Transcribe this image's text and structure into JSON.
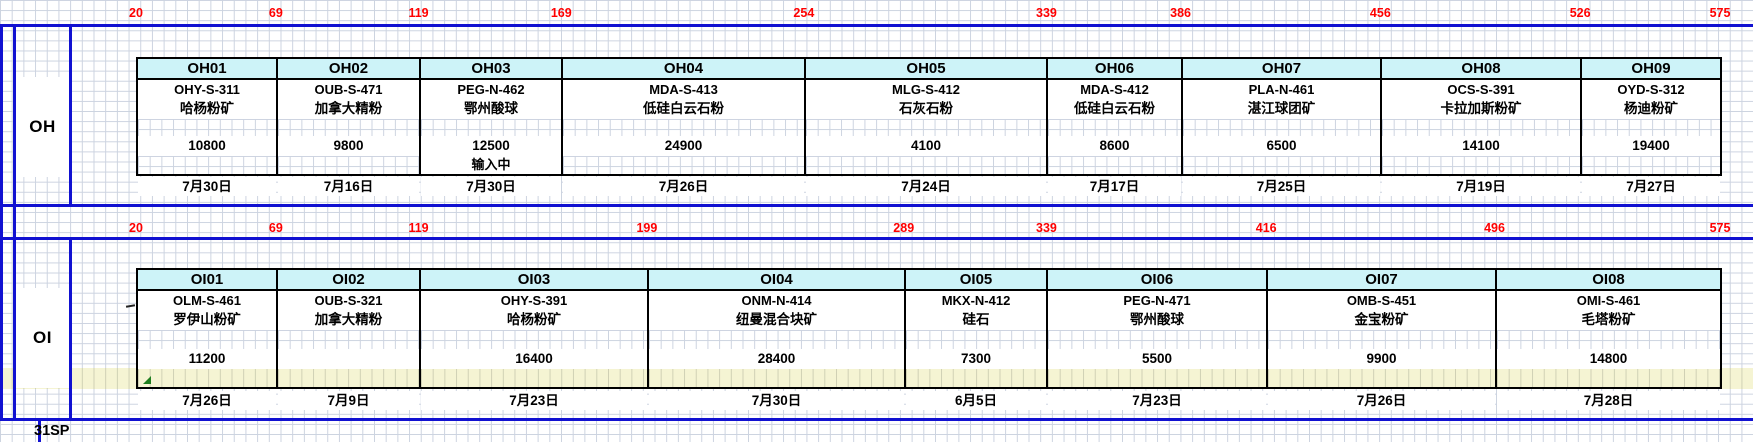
{
  "rulers": {
    "oh": [
      20,
      69,
      119,
      169,
      254,
      339,
      386,
      456,
      526,
      575
    ],
    "oi": [
      20,
      69,
      119,
      199,
      289,
      339,
      416,
      496,
      575
    ]
  },
  "sections": [
    {
      "id": "OH",
      "label": "OH",
      "bins": [
        {
          "id": "OH01",
          "start": 20,
          "end": 69,
          "code": "OHY-S-311",
          "material": "哈杨粉矿",
          "quantity": "10800",
          "note": "",
          "date": "7月30日"
        },
        {
          "id": "OH02",
          "start": 69,
          "end": 119,
          "code": "OUB-S-471",
          "material": "加拿大精粉",
          "quantity": "9800",
          "note": "",
          "date": "7月16日"
        },
        {
          "id": "OH03",
          "start": 119,
          "end": 169,
          "code": "PEG-N-462",
          "material": "鄂州酸球",
          "quantity": "12500",
          "note": "输入中",
          "date": "7月30日"
        },
        {
          "id": "OH04",
          "start": 169,
          "end": 254,
          "code": "MDA-S-413",
          "material": "低硅白云石粉",
          "quantity": "24900",
          "note": "",
          "date": "7月26日"
        },
        {
          "id": "OH05",
          "start": 254,
          "end": 339,
          "code": "MLG-S-412",
          "material": "石灰石粉",
          "quantity": "4100",
          "note": "",
          "date": "7月24日"
        },
        {
          "id": "OH06",
          "start": 339,
          "end": 386,
          "code": "MDA-S-412",
          "material": "低硅白云石粉",
          "quantity": "8600",
          "note": "",
          "date": "7月17日"
        },
        {
          "id": "OH07",
          "start": 386,
          "end": 456,
          "code": "PLA-N-461",
          "material": "湛江球团矿",
          "quantity": "6500",
          "note": "",
          "date": "7月25日"
        },
        {
          "id": "OH08",
          "start": 456,
          "end": 526,
          "code": "OCS-S-391",
          "material": "卡拉加斯粉矿",
          "quantity": "14100",
          "note": "",
          "date": "7月19日"
        },
        {
          "id": "OH09",
          "start": 526,
          "end": 575,
          "code": "OYD-S-312",
          "material": "杨迪粉矿",
          "quantity": "19400",
          "note": "",
          "date": "7月27日"
        }
      ]
    },
    {
      "id": "OI",
      "label": "OI",
      "bins": [
        {
          "id": "OI01",
          "start": 20,
          "end": 69,
          "code": "OLM-S-461",
          "material": "罗伊山粉矿",
          "quantity": "11200",
          "flag": "error-indicator",
          "date": "7月26日"
        },
        {
          "id": "OI02",
          "start": 69,
          "end": 119,
          "code": "OUB-S-321",
          "material": "加拿大精粉",
          "quantity": "",
          "date": "7月9日"
        },
        {
          "id": "OI03",
          "start": 119,
          "end": 199,
          "code": "OHY-S-391",
          "material": "哈杨粉矿",
          "quantity": "16400",
          "date": "7月23日"
        },
        {
          "id": "OI04",
          "start": 199,
          "end": 289,
          "code": "ONM-N-414",
          "material": "纽曼混合块矿",
          "quantity": "28400",
          "date": "7月30日"
        },
        {
          "id": "OI05",
          "start": 289,
          "end": 339,
          "code": "MKX-N-412",
          "material": "硅石",
          "quantity": "7300",
          "date": "6月5日"
        },
        {
          "id": "OI06",
          "start": 339,
          "end": 416,
          "code": "PEG-N-471",
          "material": "鄂州酸球",
          "quantity": "5500",
          "date": "7月23日"
        },
        {
          "id": "OI07",
          "start": 416,
          "end": 496,
          "code": "OMB-S-451",
          "material": "金宝粉矿",
          "quantity": "9900",
          "date": "7月26日"
        },
        {
          "id": "OI08",
          "start": 496,
          "end": 575,
          "code": "OMI-S-461",
          "material": "毛塔粉矿",
          "quantity": "14800",
          "date": "7月28日"
        }
      ]
    }
  ],
  "footer": {
    "label": "31SP"
  },
  "colors": {
    "section_line_blue": "#1111d1",
    "ruler_red": "#ff0000",
    "bin_header_cyan": "#cdf3f8",
    "yellow_band": "#f5f4d3",
    "gridline": "#ccd3e0",
    "border_black": "#000000",
    "error_triangle_green": "#1f7f1f"
  }
}
